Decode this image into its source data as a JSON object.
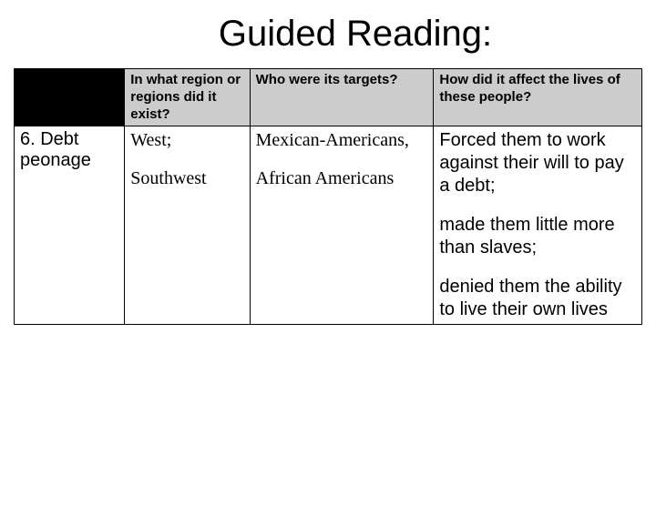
{
  "title": "Guided Reading:",
  "headers": {
    "col1": "In what region or regions did it exist?",
    "col2": "Who were its targets?",
    "col3": "How did it affect the lives of these people?"
  },
  "row": {
    "label": "6. Debt peonage",
    "region_p1": "West;",
    "region_p2": "Southwest",
    "targets_p1": "Mexican-Americans,",
    "targets_p2": "African Americans",
    "effect_p1": "Forced them to work against their will to pay a debt;",
    "effect_p2": "made them little more than slaves;",
    "effect_p3": "denied them the ability to live their own lives"
  },
  "colors": {
    "header_bg": "#cccccc",
    "blank_header_bg": "#000000",
    "border": "#000000",
    "background": "#ffffff"
  }
}
